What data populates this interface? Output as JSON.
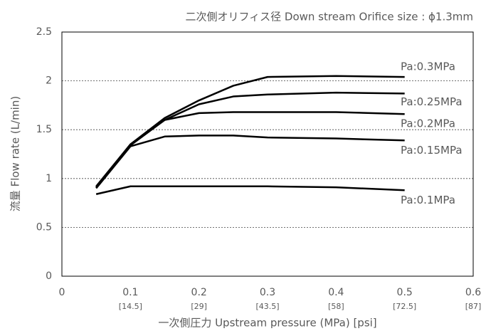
{
  "chart_data": {
    "type": "line",
    "title": "二次側オリフィス径 Down stream Orifice size : ϕ1.3mm",
    "x_label": "一次側圧力 Upstream pressure (MPa) [psi]",
    "y_label": "流量 Flow rate (L/min)",
    "x": [
      0.05,
      0.1,
      0.15,
      0.2,
      0.25,
      0.3,
      0.4,
      0.5
    ],
    "series": [
      {
        "name": "Pa:0.3MPa",
        "color": "#000000",
        "values": [
          0.92,
          1.35,
          1.62,
          1.8,
          1.95,
          2.04,
          2.05,
          2.04
        ]
      },
      {
        "name": "Pa:0.25MPa",
        "color": "#000000",
        "values": [
          0.91,
          1.35,
          1.6,
          1.76,
          1.84,
          1.86,
          1.88,
          1.87
        ]
      },
      {
        "name": "Pa:0.2MPa",
        "color": "#000000",
        "values": [
          0.91,
          1.34,
          1.6,
          1.67,
          1.68,
          1.68,
          1.68,
          1.66
        ]
      },
      {
        "name": "Pa:0.15MPa",
        "color": "#000000",
        "values": [
          0.9,
          1.33,
          1.43,
          1.44,
          1.44,
          1.42,
          1.41,
          1.39
        ]
      },
      {
        "name": "Pa:0.1MPa",
        "color": "#000000",
        "values": [
          0.84,
          0.92,
          0.92,
          0.92,
          0.92,
          0.92,
          0.91,
          0.88
        ]
      }
    ],
    "xlim": [
      0,
      0.6
    ],
    "xticks": [
      0,
      0.1,
      0.2,
      0.3,
      0.4,
      0.5,
      0.6
    ],
    "xtick_psi_labels": [
      null,
      "[14.5]",
      "[29]",
      "[43.5]",
      "[58]",
      "[72.5]",
      "[87]"
    ],
    "ylim": [
      0,
      2.5
    ],
    "yticks": [
      0,
      0.5,
      1,
      1.5,
      2,
      2.5
    ],
    "grid": true
  }
}
